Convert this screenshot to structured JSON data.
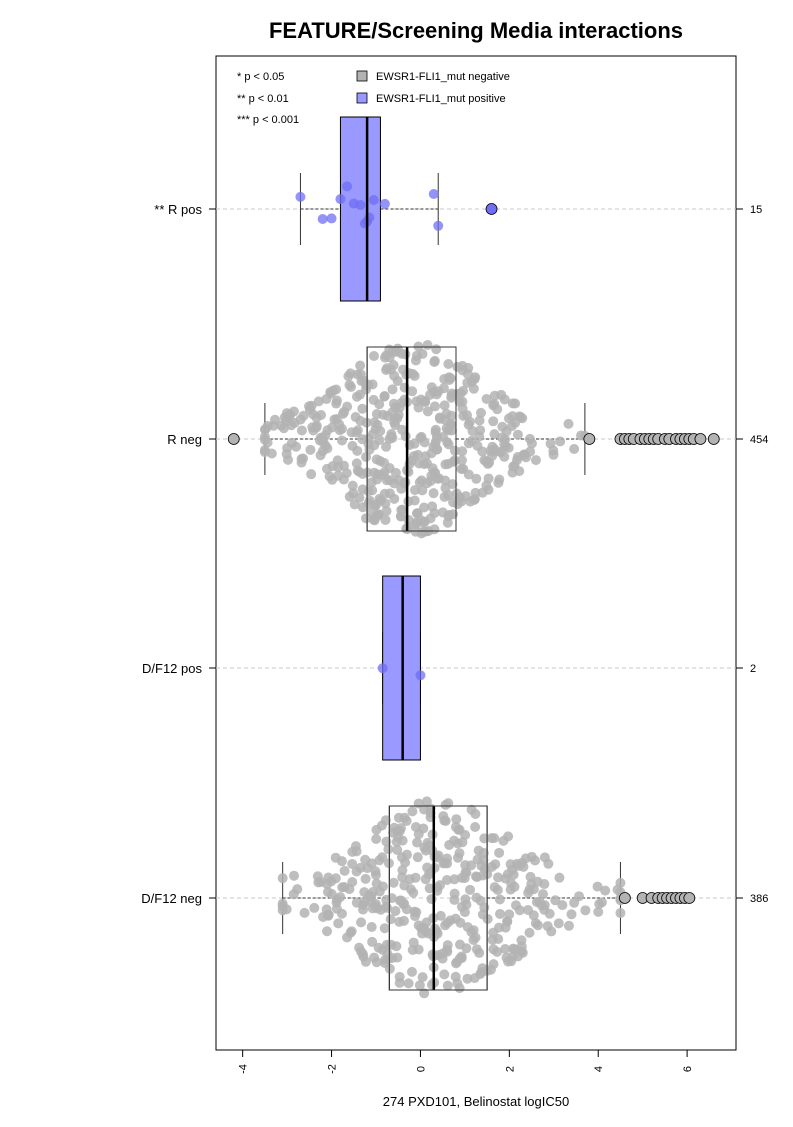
{
  "chart_data": {
    "type": "box",
    "title": "FEATURE/Screening Media interactions",
    "xlabel": "274 PXD101, Belinostat logIC50",
    "ylabel": "",
    "xlim": [
      -4.6,
      7.1
    ],
    "xticks": [
      -4,
      -2,
      0,
      2,
      4,
      6
    ],
    "grid": "dashed horizontal lines at each group",
    "legend": {
      "placement": "top-left",
      "significance": [
        "* p < 0.05",
        "** p < 0.01",
        "*** p < 0.001"
      ],
      "entries": [
        {
          "label": "EWSR1-FLI1_mut negative",
          "color": "#b3b3b3"
        },
        {
          "label": "EWSR1-FLI1_mut positive",
          "color": "#9999ff"
        }
      ]
    },
    "colors": {
      "negative": "#b3b3b3",
      "positive": "#9999ff",
      "positive_point": "#6f6ff5"
    },
    "groups": [
      {
        "label": "** R pos",
        "count": "15",
        "status": "positive",
        "box": {
          "q1": -1.8,
          "median": -1.2,
          "q3": -0.9,
          "whisker_low": -2.7,
          "whisker_high": 0.4
        },
        "outliers": [
          1.6
        ],
        "points": [
          -2.7,
          -2.2,
          -2.0,
          -1.8,
          -1.65,
          -1.5,
          -1.35,
          -1.25,
          -1.2,
          -1.15,
          -1.05,
          -0.8,
          0.3,
          0.4
        ]
      },
      {
        "label": "R neg",
        "count": "454",
        "status": "negative",
        "box": {
          "q1": -1.2,
          "median": -0.3,
          "q3": 0.8,
          "whisker_low": -3.5,
          "whisker_high": 3.7
        },
        "outliers": [
          -4.2,
          3.8,
          4.5,
          4.6,
          4.7,
          4.8,
          4.95,
          5.05,
          5.15,
          5.25,
          5.35,
          5.5,
          5.6,
          5.75,
          5.85,
          5.95,
          6.05,
          6.15,
          6.3,
          6.6
        ],
        "points_count": 454
      },
      {
        "label": "D/F12 pos",
        "count": "2",
        "status": "positive",
        "box": {
          "q1": -0.85,
          "median": -0.4,
          "q3": 0.0,
          "whisker_low": -0.85,
          "whisker_high": 0.0
        },
        "outliers": [],
        "points": [
          -0.85,
          0.0
        ]
      },
      {
        "label": "D/F12 neg",
        "count": "386",
        "status": "negative",
        "box": {
          "q1": -0.7,
          "median": 0.3,
          "q3": 1.5,
          "whisker_low": -3.1,
          "whisker_high": 4.5
        },
        "outliers": [
          4.6,
          5.0,
          5.2,
          5.35,
          5.45,
          5.55,
          5.65,
          5.75,
          5.85,
          5.95,
          6.05
        ],
        "points_count": 386
      }
    ]
  }
}
